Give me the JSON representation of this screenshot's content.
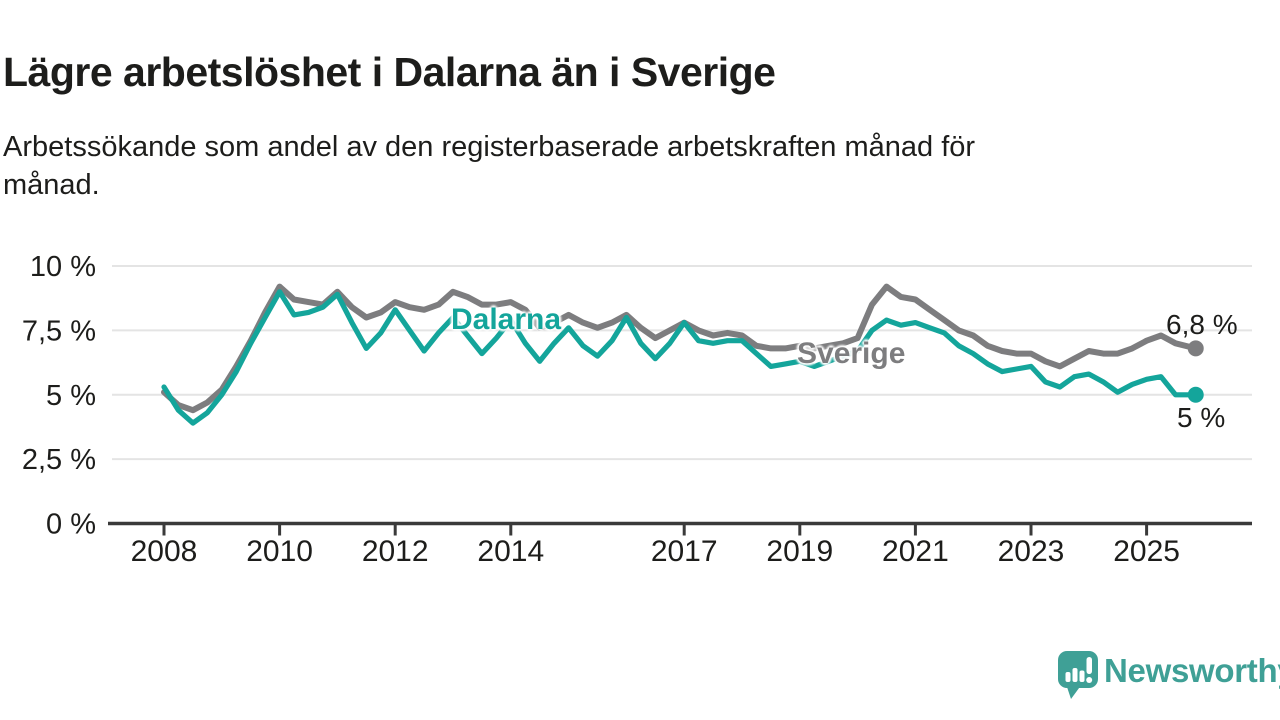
{
  "header": {
    "title": "Lägre arbetslöshet i Dalarna än i Sverige",
    "subtitle_line1": "Arbetssökande som andel av den registerbaserade arbetskraften månad för",
    "subtitle_line2": "månad."
  },
  "chart_data": {
    "type": "line",
    "title": "Lägre arbetslöshet i Dalarna än i Sverige",
    "xlabel": "",
    "ylabel": "Arbetssökande som andel av den registerbaserade arbetskraften, %",
    "grid": true,
    "legend_position": "inline-labels",
    "ylim": [
      0,
      10.5
    ],
    "xlim": [
      2007.9,
      2026.9
    ],
    "x_unit": "decimal-year (quarterly samples, monthly in source)",
    "x": [
      2008,
      2008.25,
      2008.5,
      2008.75,
      2009,
      2009.25,
      2009.5,
      2009.75,
      2010,
      2010.25,
      2010.5,
      2010.75,
      2011,
      2011.25,
      2011.5,
      2011.75,
      2012,
      2012.25,
      2012.5,
      2012.75,
      2013,
      2013.25,
      2013.5,
      2013.75,
      2014,
      2014.25,
      2014.5,
      2014.75,
      2015,
      2015.25,
      2015.5,
      2015.75,
      2016,
      2016.25,
      2016.5,
      2016.75,
      2017,
      2017.25,
      2017.5,
      2017.75,
      2018,
      2018.25,
      2018.5,
      2018.75,
      2019,
      2019.25,
      2019.5,
      2019.75,
      2020,
      2020.25,
      2020.5,
      2020.75,
      2021,
      2021.25,
      2021.5,
      2021.75,
      2022,
      2022.25,
      2022.5,
      2022.75,
      2023,
      2023.25,
      2023.5,
      2023.75,
      2024,
      2024.25,
      2024.5,
      2024.75,
      2025,
      2025.25,
      2025.5,
      2025.85
    ],
    "series": [
      {
        "name": "Dalarna",
        "color": "#14A59B",
        "end_label": "5 %",
        "end_value": 5.0,
        "values": [
          5.3,
          4.4,
          3.9,
          4.3,
          5.0,
          5.9,
          7.0,
          8.0,
          9.0,
          8.1,
          8.2,
          8.4,
          8.9,
          7.8,
          6.8,
          7.4,
          8.3,
          7.5,
          6.7,
          7.4,
          8.0,
          7.3,
          6.6,
          7.2,
          7.9,
          7.0,
          6.3,
          7.0,
          7.6,
          6.9,
          6.5,
          7.1,
          8.0,
          7.0,
          6.4,
          7.0,
          7.8,
          7.1,
          7.0,
          7.1,
          7.1,
          6.6,
          6.1,
          6.2,
          6.3,
          6.1,
          6.3,
          6.5,
          6.7,
          7.5,
          7.9,
          7.7,
          7.8,
          7.6,
          7.4,
          6.9,
          6.6,
          6.2,
          5.9,
          6.0,
          6.1,
          5.5,
          5.3,
          5.7,
          5.8,
          5.5,
          5.1,
          5.4,
          5.6,
          5.7,
          5.0,
          5.0
        ]
      },
      {
        "name": "Sverige",
        "color": "#7D7D7F",
        "end_label": "6,8 %",
        "end_value": 6.8,
        "values": [
          5.1,
          4.6,
          4.4,
          4.7,
          5.2,
          6.1,
          7.1,
          8.2,
          9.2,
          8.7,
          8.6,
          8.5,
          9.0,
          8.4,
          8.0,
          8.2,
          8.6,
          8.4,
          8.3,
          8.5,
          9.0,
          8.8,
          8.5,
          8.5,
          8.6,
          8.3,
          7.6,
          7.8,
          8.1,
          7.8,
          7.6,
          7.8,
          8.1,
          7.6,
          7.2,
          7.5,
          7.8,
          7.5,
          7.3,
          7.4,
          7.3,
          6.9,
          6.8,
          6.8,
          6.9,
          6.8,
          6.9,
          7.0,
          7.2,
          8.5,
          9.2,
          8.8,
          8.7,
          8.3,
          7.9,
          7.5,
          7.3,
          6.9,
          6.7,
          6.6,
          6.6,
          6.3,
          6.1,
          6.4,
          6.7,
          6.6,
          6.6,
          6.8,
          7.1,
          7.3,
          7.0,
          6.8
        ]
      }
    ],
    "y_ticks": [
      {
        "value": 0,
        "label": "0 %"
      },
      {
        "value": 2.5,
        "label": "2,5 %"
      },
      {
        "value": 5,
        "label": "5 %"
      },
      {
        "value": 7.5,
        "label": "7,5 %"
      },
      {
        "value": 10,
        "label": "10 %"
      }
    ],
    "x_ticks": [
      {
        "value": 2008,
        "label": "2008"
      },
      {
        "value": 2010,
        "label": "2010"
      },
      {
        "value": 2012,
        "label": "2012"
      },
      {
        "value": 2014,
        "label": "2014"
      },
      {
        "value": 2017,
        "label": "2017"
      },
      {
        "value": 2019,
        "label": "2019"
      },
      {
        "value": 2021,
        "label": "2021"
      },
      {
        "value": 2023,
        "label": "2023"
      },
      {
        "value": 2025,
        "label": "2025"
      }
    ]
  },
  "footer": {
    "brand": "Newsworthy"
  },
  "colors": {
    "accent_teal": "#14A59B",
    "series_gray": "#7D7D7F",
    "text": "#1D1D1B",
    "grid": "#E4E4E4",
    "axis": "#3A3A3A",
    "brand": "#3FA096"
  }
}
